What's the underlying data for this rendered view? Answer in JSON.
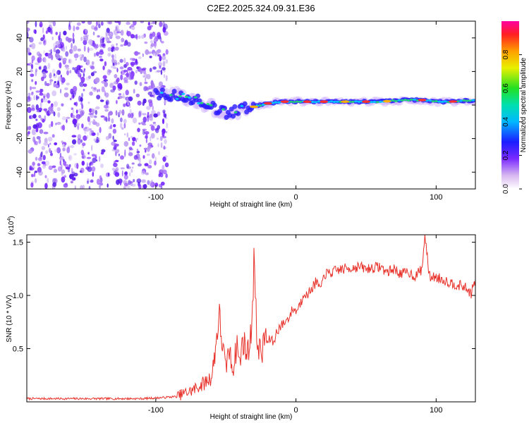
{
  "title": "C2E2.2025.324.09.31.E36",
  "chart_data": [
    {
      "type": "heatmap",
      "name": "spectrogram",
      "xlabel": "Height of straight line (km)",
      "ylabel": "Frequency (Hz)",
      "xlim": [
        -192,
        128
      ],
      "ylim": [
        -50,
        50
      ],
      "xticks": [
        -100,
        0,
        100
      ],
      "xtick_labels": [
        "-100",
        "0",
        "100"
      ],
      "yticks": [
        -40,
        -20,
        0,
        20,
        40
      ],
      "ytick_labels": [
        "-40",
        "-20",
        "0",
        "20",
        "40"
      ],
      "noise_region_x": [
        -192,
        -92
      ],
      "signal_track": {
        "x": [
          -100,
          -90,
          -80,
          -70,
          -60,
          -50,
          -40,
          -30,
          -20,
          -10,
          0,
          10,
          20,
          40,
          60,
          80,
          90,
          100,
          110,
          128
        ],
        "y": [
          7,
          6,
          5,
          3,
          -1,
          -5,
          -3,
          -1,
          1,
          2,
          2,
          2,
          2,
          2,
          2,
          3,
          3,
          2,
          2,
          3
        ]
      },
      "colorbar": {
        "label": "Normalized spectral amplitude",
        "range": [
          0,
          1
        ],
        "ticks": [
          0.0,
          0.2,
          0.4,
          0.6,
          0.8
        ],
        "tick_labels": [
          "0.0",
          "0.2",
          "0.4",
          "0.6",
          "0.8"
        ]
      }
    },
    {
      "type": "line",
      "name": "snr",
      "xlabel": "Height of straight line (km)",
      "ylabel": "SNR (10 * V/V)",
      "scale_label": "(x10",
      "scale_exponent": "4",
      "scale_close": ")",
      "xlim": [
        -192,
        128
      ],
      "ylim": [
        0,
        1.57
      ],
      "xticks": [
        -100,
        0,
        100
      ],
      "xtick_labels": [
        "-100",
        "0",
        "100"
      ],
      "yticks": [
        0.5,
        1.0,
        1.5
      ],
      "ytick_labels": [
        "0.5",
        "1.0",
        "1.5"
      ],
      "color": "#e8312a",
      "series": [
        {
          "name": "SNR",
          "x": [
            -192,
            -170,
            -150,
            -130,
            -110,
            -95,
            -85,
            -80,
            -75,
            -70,
            -65,
            -60,
            -57,
            -55,
            -52,
            -50,
            -48,
            -45,
            -42,
            -40,
            -38,
            -35,
            -32,
            -30,
            -28,
            -26,
            -24,
            -22,
            -20,
            -18,
            -16,
            -14,
            -12,
            -10,
            -8,
            -6,
            -4,
            -2,
            0,
            2,
            4,
            6,
            8,
            10,
            12,
            14,
            16,
            18,
            20,
            25,
            30,
            35,
            40,
            45,
            50,
            55,
            60,
            65,
            70,
            75,
            80,
            85,
            90,
            92,
            95,
            100,
            105,
            110,
            115,
            120,
            125,
            128
          ],
          "y": [
            0.03,
            0.03,
            0.03,
            0.03,
            0.03,
            0.04,
            0.05,
            0.08,
            0.1,
            0.14,
            0.18,
            0.24,
            0.55,
            0.82,
            0.5,
            0.3,
            0.5,
            0.3,
            0.55,
            0.35,
            0.6,
            0.45,
            0.62,
            1.38,
            0.6,
            0.5,
            0.45,
            0.65,
            0.55,
            0.6,
            0.55,
            0.65,
            0.7,
            0.72,
            0.75,
            0.78,
            0.82,
            0.88,
            0.85,
            0.9,
            0.95,
            1.05,
            0.98,
            1.05,
            1.08,
            1.12,
            1.1,
            1.05,
            1.2,
            1.21,
            1.24,
            1.25,
            1.26,
            1.27,
            1.25,
            1.26,
            1.27,
            1.22,
            1.25,
            1.2,
            1.22,
            1.18,
            1.25,
            1.58,
            1.18,
            1.17,
            1.15,
            1.12,
            1.1,
            1.08,
            1.02,
            1.15
          ]
        }
      ]
    }
  ]
}
